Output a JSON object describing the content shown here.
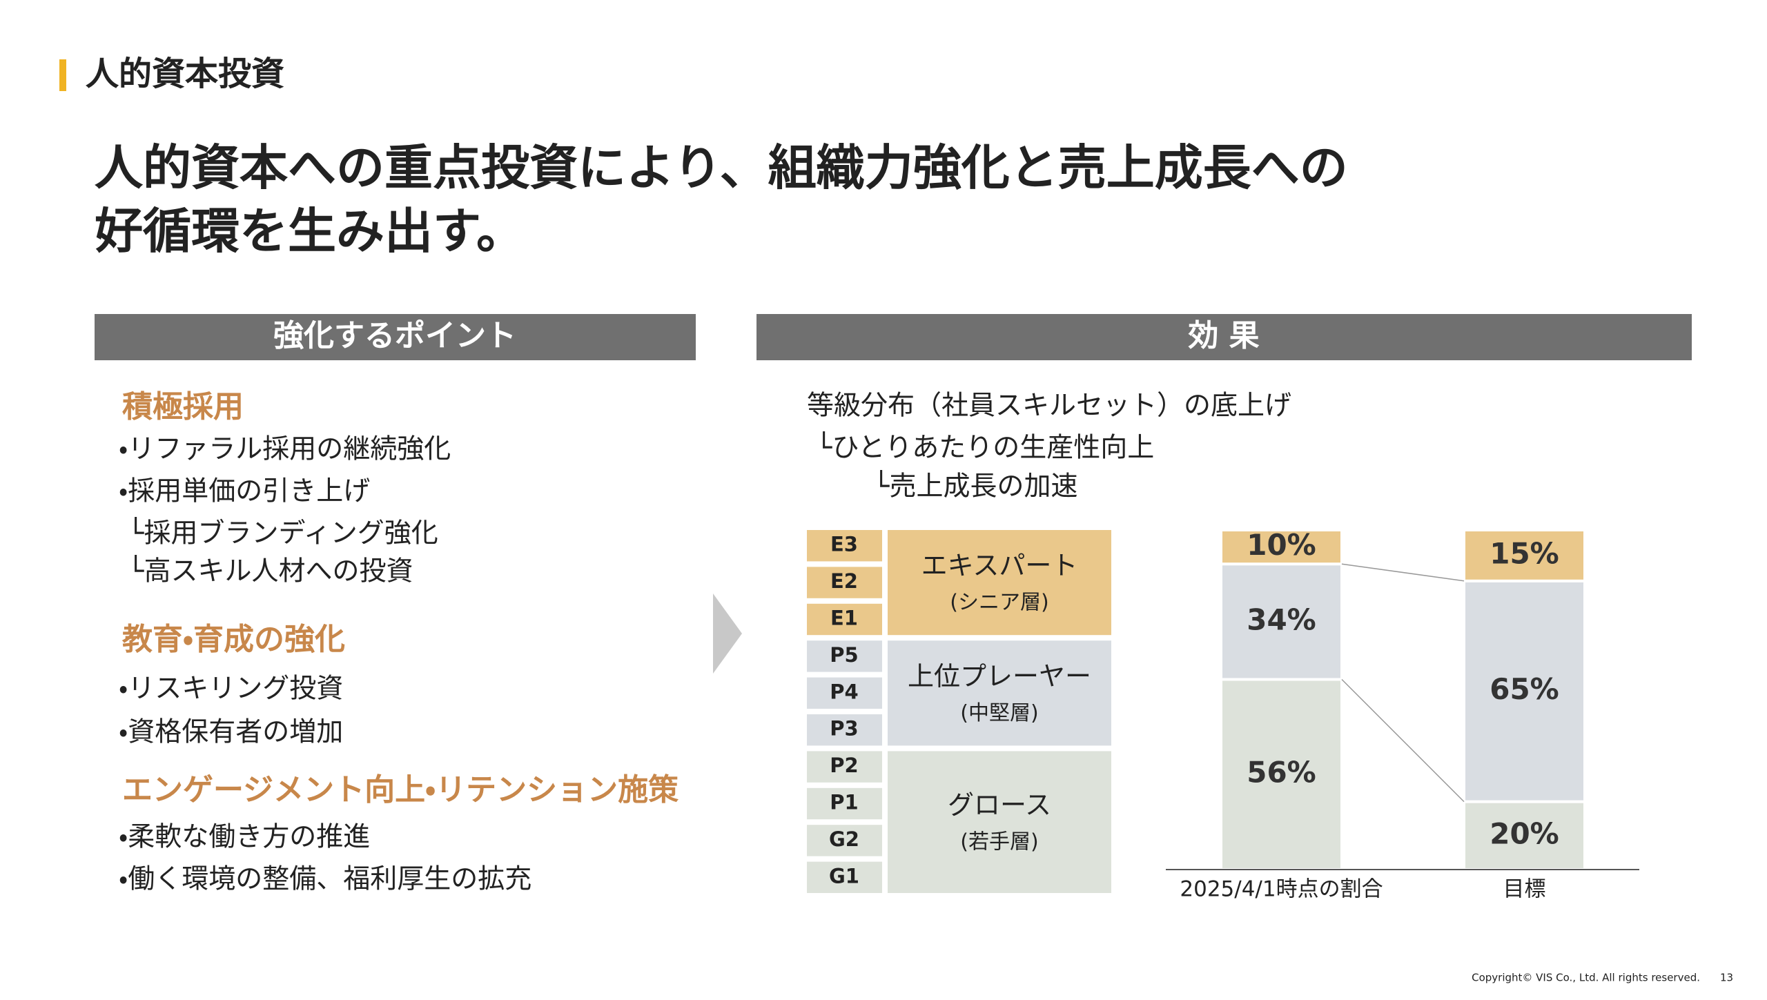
{
  "header": {
    "section": "人的資本投資",
    "title_lines": [
      "人的資本への重点投資により、組織力強化と売上成長への",
      "好循環を生み出す。"
    ]
  },
  "left": {
    "heading": "強化するポイント",
    "groups": [
      {
        "title": "積極採用",
        "items": [
          "・リファラル採用の継続強化",
          "・採用単価の引き上げ",
          "└採用ブランディング強化",
          "└高スキル人材への投資"
        ]
      },
      {
        "title": "教育・育成の強化",
        "items": [
          "・リスキリング投資",
          "・資格保有者の増加"
        ]
      },
      {
        "title": "エンゲージメント向上・リテンション施策",
        "items": [
          "・柔軟な働き方の推進",
          "・働く環境の整備、福利厚生の拡充"
        ]
      }
    ]
  },
  "right": {
    "heading": "効 果",
    "lines": [
      "等級分布（社員スキルセット）の底上げ",
      "└ひとりあたりの生産性向上",
      "└売上成長の加速"
    ],
    "bands": [
      {
        "levels": [
          "E3",
          "E2",
          "E1"
        ],
        "sub": "(シニア層)"
      },
      {
        "levels": [
          "P5",
          "P4",
          "P3"
        ],
        "sub": "(中堅層)"
      },
      {
        "levels": [
          "P2",
          "P1",
          "G2",
          "G1"
        ],
        "sub": "(若手層)"
      }
    ]
  },
  "chart_data": {
    "type": "stacked-bar",
    "categories": [
      "2025/4/1時点の割合",
      "目標"
    ],
    "series": [
      {
        "name": "グロース",
        "color": "#dde2da",
        "values": [
          56,
          20
        ],
        "value_labels": [
          "56%",
          "20%"
        ]
      },
      {
        "name": "上位プレーヤー",
        "color": "#d9dde2",
        "values": [
          34,
          65
        ],
        "value_labels": [
          "34%",
          "65%"
        ]
      },
      {
        "name": "エキスパート",
        "color": "#eac88b",
        "values": [
          10,
          15
        ],
        "value_labels": [
          "10%",
          "15%"
        ]
      }
    ],
    "ylim": [
      0,
      100
    ]
  },
  "footer": {
    "copyright": "Copyright© VIS Co., Ltd. All rights reserved.",
    "page": "13"
  }
}
